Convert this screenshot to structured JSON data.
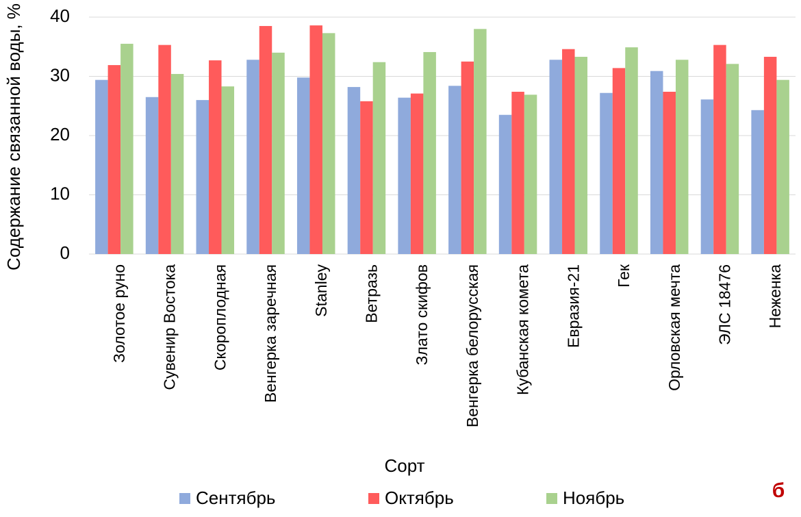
{
  "chart_data": {
    "type": "bar",
    "x_label": "Сорт",
    "y_label": "Содержание связанной воды, %",
    "panel_label": "б",
    "categories": [
      "Золотое руно",
      "Сувенир Востока",
      "Скороплодная",
      "Венгерка заречная",
      "Stanley",
      "Ветразь",
      "Злато скифов",
      "Венгерка белорусская",
      "Кубанская комета",
      "Евразия-21",
      "Гек",
      "Орловская мечта",
      "ЭЛС 18476",
      "Неженка"
    ],
    "series": [
      {
        "name": "Сентябрь",
        "color": "#8faadc",
        "values": [
          29.4,
          26.5,
          26.0,
          32.8,
          29.8,
          28.2,
          26.4,
          28.4,
          23.5,
          32.8,
          27.2,
          30.9,
          26.1,
          24.3
        ]
      },
      {
        "name": "Октябрь",
        "color": "#ff5b5b",
        "values": [
          31.9,
          35.3,
          32.7,
          38.5,
          38.6,
          25.8,
          27.1,
          32.5,
          27.4,
          34.6,
          31.4,
          27.4,
          35.3,
          33.3
        ]
      },
      {
        "name": "Ноябрь",
        "color": "#a9d18e",
        "values": [
          35.5,
          30.4,
          28.3,
          34.0,
          37.3,
          32.4,
          34.1,
          38.0,
          26.9,
          33.3,
          34.9,
          32.8,
          32.1,
          29.4
        ]
      }
    ],
    "ylim": [
      0,
      40
    ],
    "yticks": [
      0,
      10,
      20,
      30,
      40
    ],
    "grid": true,
    "legend": "bottom"
  }
}
